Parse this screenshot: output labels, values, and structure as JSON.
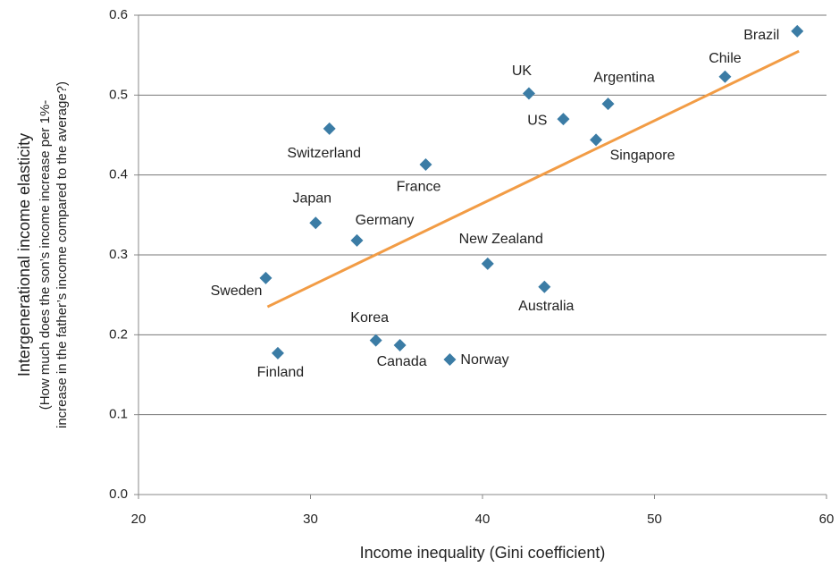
{
  "chart_data": {
    "type": "scatter",
    "xlabel": "Income inequality (Gini coefficient)",
    "ylabel": "Intergenerational income elasticity",
    "ylabel_note": [
      "(How much does the son’s income increase per 1%-",
      "increase in the father’s income compared to the average?)"
    ],
    "xlim": [
      20,
      60
    ],
    "xticks": [
      20,
      30,
      40,
      50,
      60
    ],
    "ylim": [
      0,
      0.6
    ],
    "yticks": [
      {
        "value": 0,
        "label": "0.0"
      },
      0.1,
      0.2,
      0.3,
      0.4,
      0.5,
      0.6
    ],
    "grid": true,
    "color": "#3b7ca5",
    "labels": [
      "Brazil",
      "Chile",
      "UK",
      "Argentina",
      "US",
      "Singapore",
      "Switzerland",
      "France",
      "Japan",
      "Germany",
      "New Zealand",
      "Australia",
      "Sweden",
      "Finland",
      "Korea",
      "Canada",
      "Norway"
    ],
    "x": [
      58.3,
      54.1,
      42.7,
      47.3,
      44.7,
      46.6,
      31.1,
      36.7,
      30.3,
      32.7,
      40.3,
      43.6,
      27.4,
      28.1,
      33.8,
      35.2,
      38.1
    ],
    "y": [
      0.58,
      0.523,
      0.502,
      0.489,
      0.47,
      0.444,
      0.458,
      0.413,
      0.34,
      0.318,
      0.289,
      0.26,
      0.271,
      0.177,
      0.193,
      0.187,
      0.169
    ],
    "trendline": {
      "x": [
        27.5,
        58.4
      ],
      "y": [
        0.235,
        0.555
      ],
      "color": "#f29c45"
    }
  }
}
